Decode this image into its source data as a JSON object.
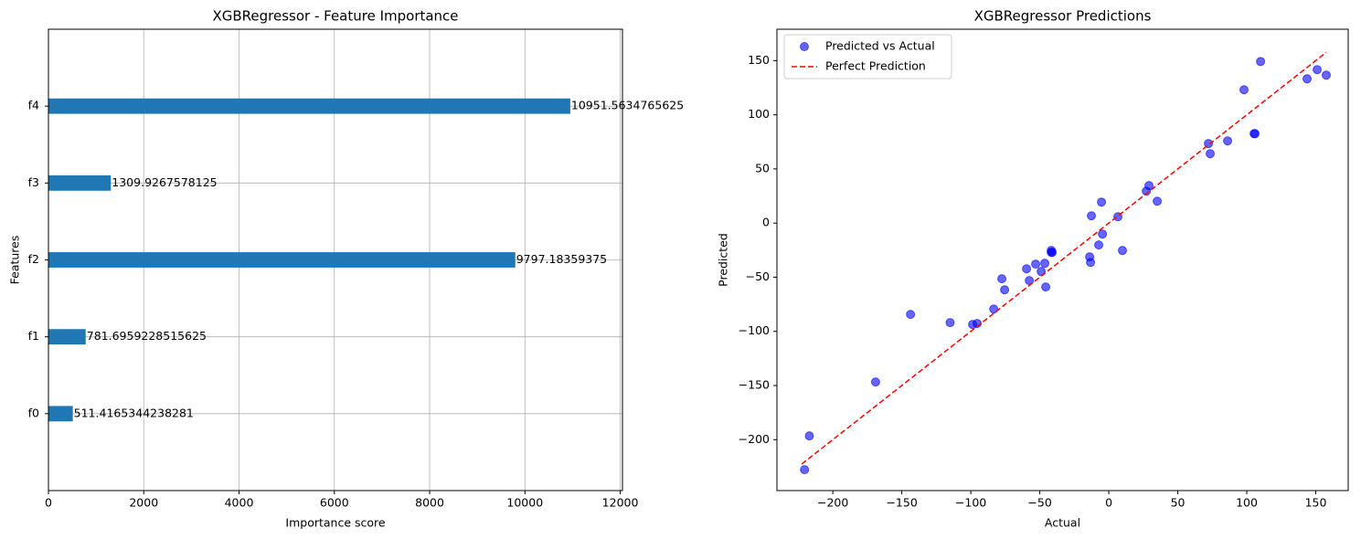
{
  "chart_data": [
    {
      "type": "barh",
      "title": "XGBRegressor - Feature Importance",
      "xlabel": "Importance score",
      "ylabel": "Features",
      "categories": [
        "f0",
        "f1",
        "f2",
        "f3",
        "f4"
      ],
      "values": [
        511.4165344238281,
        781.6959228515625,
        9797.18359375,
        1309.9267578125,
        10951.5634765625
      ],
      "color": "#1f77b4",
      "xlim": [
        0,
        12046.72
      ],
      "xticks": [
        0,
        2000,
        4000,
        6000,
        8000,
        10000,
        12000
      ],
      "grid": true
    },
    {
      "type": "scatter",
      "title": "XGBRegressor Predictions",
      "xlabel": "Actual",
      "ylabel": "Predicted",
      "series": [
        {
          "name": "Predicted vs Actual",
          "type": "scatter",
          "color": "#0000ff",
          "x": [
            -220.5,
            -217,
            -169,
            -143.7,
            -115,
            -98.7,
            -95.4,
            -83.4,
            -77.5,
            -75.5,
            -59.6,
            -57.6,
            -53,
            -49,
            -46.4,
            -45.7,
            -41.7,
            -41,
            -41.7,
            -13.9,
            -13.2,
            -12.6,
            -7.3,
            -5.3,
            -4.6,
            6.6,
            9.9,
            27.2,
            29.1,
            35.1,
            72.2,
            73.5,
            86.1,
            98,
            105.3,
            106,
            110,
            143.7,
            151,
            157.6
          ],
          "values": [
            -227.7,
            -196.5,
            -146.7,
            -84.3,
            -91.9,
            -93.6,
            -92.7,
            -79.3,
            -51.4,
            -61.6,
            -42.2,
            -53.1,
            -37.9,
            -44.7,
            -37.1,
            -59,
            -25.3,
            -27,
            -27,
            -31.2,
            -36.3,
            6.7,
            -20.2,
            19.4,
            -10.1,
            5.9,
            -25.3,
            29.5,
            34.6,
            20.2,
            73.4,
            64.1,
            75.9,
            123.1,
            82.6,
            82.6,
            149.2,
            133.2,
            141.7,
            136.6
          ]
        },
        {
          "name": "Perfect Prediction",
          "type": "line",
          "color": "#ff0000",
          "x": [
            -222.5,
            157.6
          ],
          "values": [
            -222.5,
            157.6
          ]
        }
      ],
      "xlim": [
        -240.5,
        173.5
      ],
      "ylim": [
        -247,
        179
      ],
      "xticks": [
        {
          "value": -200,
          "label": "−200"
        },
        {
          "value": -150,
          "label": "−150"
        },
        {
          "value": -100,
          "label": "−100"
        },
        {
          "value": -50,
          "label": "−50"
        },
        0,
        50,
        100,
        150
      ],
      "yticks": [
        {
          "value": -200,
          "label": "−200"
        },
        {
          "value": -150,
          "label": "−150"
        },
        {
          "value": -100,
          "label": "−100"
        },
        {
          "value": -50,
          "label": "−50"
        },
        0,
        50,
        100,
        150
      ],
      "legend": "upper left"
    }
  ]
}
